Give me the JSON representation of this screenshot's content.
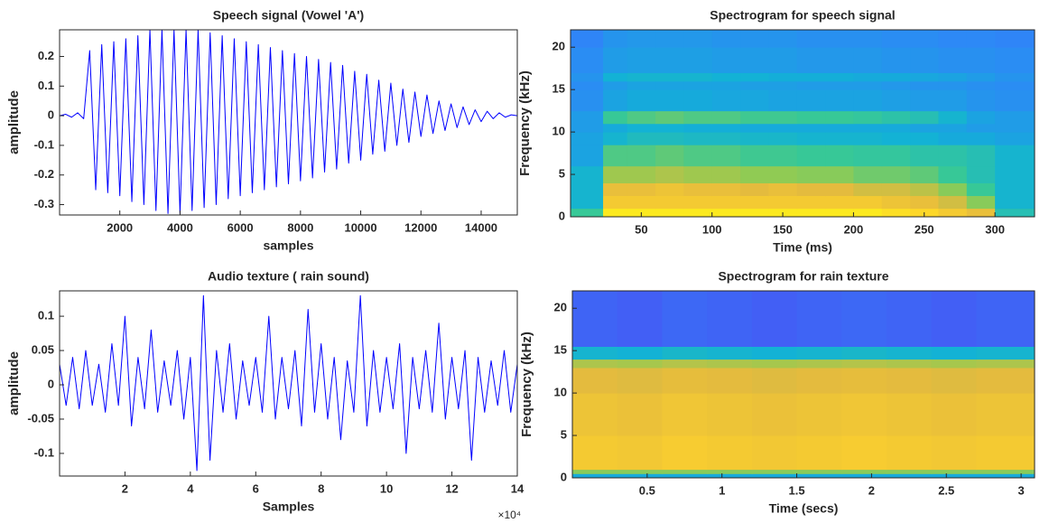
{
  "chart_data": [
    {
      "type": "line",
      "title": "Speech signal (Vowel 'A')",
      "xlabel": "samples",
      "ylabel": "amplitude",
      "xlim": [
        0,
        15200
      ],
      "ylim": [
        -0.335,
        0.29
      ],
      "xticks": [
        2000,
        4000,
        6000,
        8000,
        10000,
        12000,
        14000
      ],
      "yticks": [
        -0.3,
        -0.2,
        -0.1,
        0,
        0.1,
        0.2
      ],
      "series": [
        {
          "color": "#0000ff",
          "x": [
            0,
            200,
            400,
            600,
            800,
            1000,
            1200,
            1400,
            1600,
            1800,
            2000,
            2200,
            2400,
            2600,
            2800,
            3000,
            3200,
            3400,
            3600,
            3800,
            4000,
            4200,
            4400,
            4600,
            4800,
            5000,
            5200,
            5400,
            5600,
            5800,
            6000,
            6200,
            6400,
            6600,
            6800,
            7000,
            7200,
            7400,
            7600,
            7800,
            8000,
            8200,
            8400,
            8600,
            8800,
            9000,
            9200,
            9400,
            9600,
            9800,
            10000,
            10200,
            10400,
            10600,
            10800,
            11000,
            11200,
            11400,
            11600,
            11800,
            12000,
            12200,
            12400,
            12600,
            12800,
            13000,
            13200,
            13400,
            13600,
            13800,
            14000,
            14200,
            14400,
            14600,
            14800,
            15000,
            15200
          ],
          "values": [
            0,
            0.005,
            -0.005,
            0.01,
            -0.01,
            0.22,
            -0.25,
            0.24,
            -0.26,
            0.25,
            -0.27,
            0.26,
            -0.29,
            0.27,
            -0.3,
            0.29,
            -0.32,
            0.29,
            -0.33,
            0.29,
            -0.33,
            0.29,
            -0.32,
            0.29,
            -0.31,
            0.28,
            -0.3,
            0.27,
            -0.28,
            0.26,
            -0.27,
            0.25,
            -0.26,
            0.24,
            -0.25,
            0.23,
            -0.24,
            0.22,
            -0.23,
            0.21,
            -0.22,
            0.2,
            -0.21,
            0.19,
            -0.19,
            0.18,
            -0.18,
            0.17,
            -0.16,
            0.15,
            -0.15,
            0.14,
            -0.13,
            0.12,
            -0.12,
            0.11,
            -0.1,
            0.09,
            -0.09,
            0.08,
            -0.07,
            0.07,
            -0.06,
            0.05,
            -0.05,
            0.04,
            -0.04,
            0.03,
            -0.03,
            0.02,
            -0.02,
            0.015,
            -0.01,
            0.01,
            -0.005,
            0.003,
            0
          ]
        }
      ]
    },
    {
      "type": "heatmap",
      "title": "Spectrogram for speech signal",
      "xlabel": "Time (ms)",
      "ylabel": "Frequency (kHz)",
      "xlim": [
        0,
        328
      ],
      "ylim": [
        0,
        22.05
      ],
      "xticks": [
        50,
        100,
        150,
        200,
        250,
        300
      ],
      "yticks": [
        0,
        5,
        10,
        15,
        20
      ],
      "colormap": "parula",
      "zlim": [
        -130,
        -40
      ],
      "xbins": [
        0,
        23,
        40,
        60,
        80,
        100,
        120,
        140,
        160,
        180,
        200,
        220,
        240,
        260,
        280,
        300,
        328
      ],
      "ybins": [
        0,
        1,
        2.5,
        4,
        6,
        8.5,
        10,
        11,
        12.5,
        15,
        16,
        17,
        20,
        22.05
      ],
      "z": [
        [
          -85,
          -45,
          -45,
          -45,
          -45,
          -45,
          -45,
          -45,
          -45,
          -45,
          -45,
          -48,
          -50,
          -55,
          -60,
          -90
        ],
        [
          -95,
          -55,
          -55,
          -55,
          -55,
          -55,
          -55,
          -55,
          -55,
          -55,
          -55,
          -58,
          -60,
          -65,
          -75,
          -95
        ],
        [
          -95,
          -60,
          -60,
          -58,
          -60,
          -60,
          -62,
          -60,
          -62,
          -62,
          -65,
          -65,
          -68,
          -75,
          -85,
          -95
        ],
        [
          -95,
          -72,
          -72,
          -70,
          -72,
          -72,
          -74,
          -74,
          -75,
          -75,
          -78,
          -78,
          -80,
          -85,
          -90,
          -95
        ],
        [
          -100,
          -82,
          -82,
          -80,
          -82,
          -82,
          -84,
          -84,
          -85,
          -85,
          -86,
          -86,
          -88,
          -88,
          -90,
          -95
        ],
        [
          -100,
          -95,
          -92,
          -92,
          -93,
          -93,
          -94,
          -94,
          -95,
          -95,
          -95,
          -96,
          -96,
          -98,
          -98,
          -100
        ],
        [
          -102,
          -98,
          -96,
          -96,
          -97,
          -97,
          -98,
          -98,
          -98,
          -98,
          -98,
          -98,
          -100,
          -100,
          -102,
          -102
        ],
        [
          -102,
          -85,
          -82,
          -80,
          -82,
          -82,
          -84,
          -84,
          -85,
          -85,
          -86,
          -88,
          -90,
          -95,
          -100,
          -102
        ],
        [
          -105,
          -100,
          -98,
          -98,
          -98,
          -99,
          -99,
          -100,
          -100,
          -100,
          -100,
          -101,
          -102,
          -102,
          -104,
          -105
        ],
        [
          -106,
          -102,
          -100,
          -100,
          -100,
          -100,
          -101,
          -101,
          -102,
          -102,
          -102,
          -103,
          -104,
          -104,
          -105,
          -106
        ],
        [
          -104,
          -96,
          -95,
          -95,
          -95,
          -96,
          -96,
          -97,
          -97,
          -97,
          -98,
          -98,
          -99,
          -100,
          -102,
          -104
        ],
        [
          -106,
          -102,
          -101,
          -101,
          -101,
          -102,
          -102,
          -102,
          -103,
          -103,
          -103,
          -104,
          -104,
          -105,
          -105,
          -106
        ],
        [
          -108,
          -104,
          -103,
          -103,
          -103,
          -104,
          -104,
          -104,
          -105,
          -105,
          -105,
          -106,
          -106,
          -107,
          -107,
          -108
        ]
      ]
    },
    {
      "type": "line",
      "title": "Audio texture ( rain sound)",
      "xlabel": "Samples",
      "ylabel": "amplitude",
      "x_exponent_label": "×10⁴",
      "xlim": [
        0,
        140000
      ],
      "ylim": [
        -0.133,
        0.137
      ],
      "xticks": [
        {
          "value": 20000,
          "label": "2"
        },
        {
          "value": 40000,
          "label": "4"
        },
        {
          "value": 60000,
          "label": "6"
        },
        {
          "value": 80000,
          "label": "8"
        },
        {
          "value": 100000,
          "label": "10"
        },
        {
          "value": 120000,
          "label": "12"
        },
        {
          "value": 140000,
          "label": "14"
        }
      ],
      "yticks": [
        -0.1,
        -0.05,
        0,
        0.05,
        0.1
      ],
      "series": [
        {
          "color": "#0000ff",
          "x": [
            0,
            2000,
            4000,
            6000,
            8000,
            10000,
            12000,
            14000,
            16000,
            18000,
            20000,
            22000,
            24000,
            26000,
            28000,
            30000,
            32000,
            34000,
            36000,
            38000,
            40000,
            42000,
            44000,
            46000,
            48000,
            50000,
            52000,
            54000,
            56000,
            58000,
            60000,
            62000,
            64000,
            66000,
            68000,
            70000,
            72000,
            74000,
            76000,
            78000,
            80000,
            82000,
            84000,
            86000,
            88000,
            90000,
            92000,
            94000,
            96000,
            98000,
            100000,
            102000,
            104000,
            106000,
            108000,
            110000,
            112000,
            114000,
            116000,
            118000,
            120000,
            122000,
            124000,
            126000,
            128000,
            130000,
            132000,
            134000,
            136000,
            138000,
            140000
          ],
          "values": [
            0.03,
            -0.03,
            0.04,
            -0.035,
            0.05,
            -0.03,
            0.03,
            -0.04,
            0.06,
            -0.03,
            0.1,
            -0.06,
            0.04,
            -0.035,
            0.08,
            -0.04,
            0.035,
            -0.03,
            0.05,
            -0.05,
            0.04,
            -0.125,
            0.13,
            -0.11,
            0.05,
            -0.04,
            0.06,
            -0.05,
            0.035,
            -0.03,
            0.04,
            -0.04,
            0.1,
            -0.05,
            0.04,
            -0.035,
            0.05,
            -0.06,
            0.11,
            -0.04,
            0.06,
            -0.05,
            0.04,
            -0.08,
            0.035,
            -0.04,
            0.13,
            -0.06,
            0.05,
            -0.04,
            0.04,
            -0.035,
            0.06,
            -0.1,
            0.04,
            -0.035,
            0.05,
            -0.04,
            0.09,
            -0.05,
            0.04,
            -0.035,
            0.05,
            -0.11,
            0.04,
            -0.04,
            0.035,
            -0.03,
            0.05,
            -0.04,
            0.03
          ]
        }
      ]
    },
    {
      "type": "heatmap",
      "title": "Spectrogram for rain texture",
      "xlabel": "Time (secs)",
      "ylabel": "Frequency (kHz)",
      "xlim": [
        0,
        3.09
      ],
      "ylim": [
        0,
        22.05
      ],
      "xticks": [
        0.5,
        1,
        1.5,
        2,
        2.5,
        3
      ],
      "yticks": [
        0,
        5,
        10,
        15,
        20
      ],
      "colormap": "parula",
      "zlim": [
        -130,
        -40
      ],
      "xbins": [
        0,
        0.3,
        0.6,
        0.9,
        1.2,
        1.5,
        1.8,
        2.1,
        2.4,
        2.7,
        3.09
      ],
      "ybins": [
        0,
        0.5,
        1,
        5,
        10,
        13,
        14,
        15.5,
        22.05
      ],
      "z": [
        [
          -98,
          -98,
          -98,
          -98,
          -98,
          -98,
          -98,
          -98,
          -98,
          -98
        ],
        [
          -75,
          -75,
          -75,
          -75,
          -75,
          -75,
          -75,
          -75,
          -75,
          -75
        ],
        [
          -55,
          -56,
          -54,
          -55,
          -56,
          -55,
          -54,
          -55,
          -56,
          -55
        ],
        [
          -58,
          -59,
          -57,
          -58,
          -59,
          -58,
          -57,
          -58,
          -59,
          -58
        ],
        [
          -62,
          -63,
          -61,
          -62,
          -63,
          -62,
          -61,
          -62,
          -63,
          -62
        ],
        [
          -70,
          -71,
          -69,
          -70,
          -71,
          -70,
          -69,
          -70,
          -71,
          -70
        ],
        [
          -95,
          -96,
          -94,
          -95,
          -96,
          -95,
          -94,
          -95,
          -96,
          -95
        ],
        [
          -115,
          -116,
          -114,
          -115,
          -116,
          -115,
          -114,
          -115,
          -116,
          -115
        ]
      ]
    }
  ]
}
